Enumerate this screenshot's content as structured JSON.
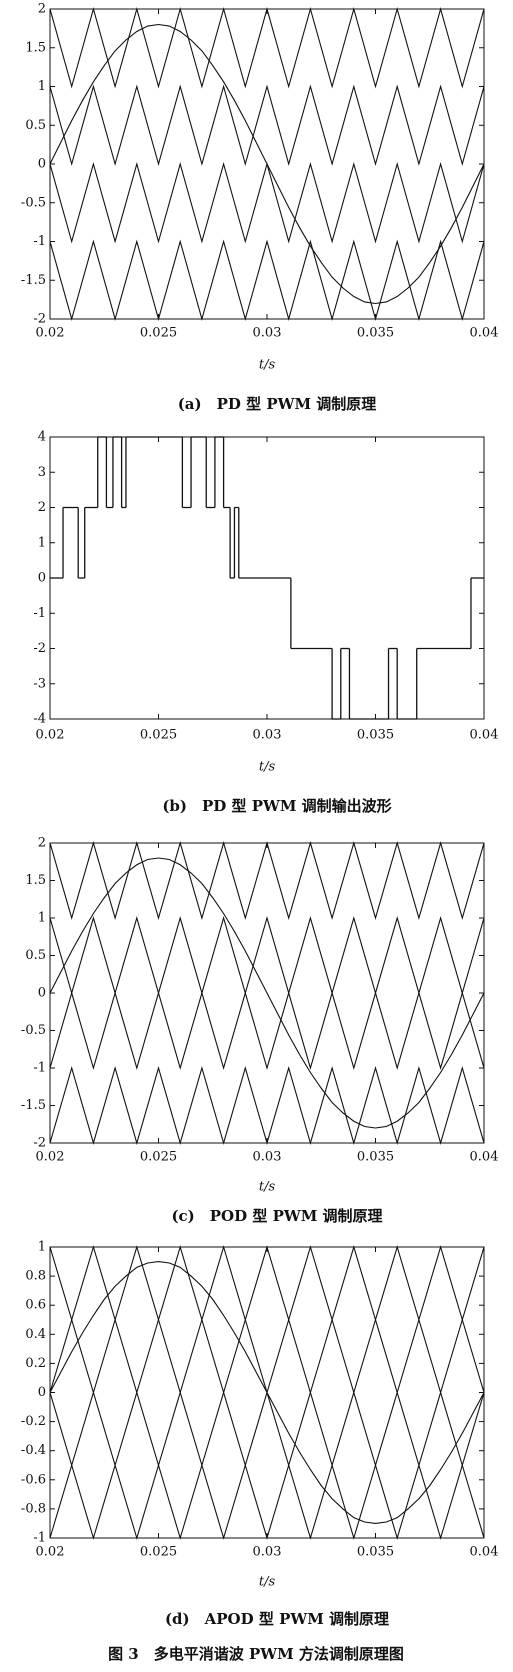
{
  "chart_data": [
    {
      "type": "line",
      "xlabel": "t/s",
      "caption": "(a)　PD 型 PWM 调制原理",
      "xlim": [
        0.02,
        0.04
      ],
      "xticks": [
        0.02,
        0.025,
        0.03,
        0.035,
        0.04
      ],
      "ylim": [
        -2,
        2
      ],
      "yticks": [
        2,
        1.5,
        1,
        0.5,
        0,
        -0.5,
        -1,
        -1.5,
        -2
      ],
      "x": [
        0.02,
        0.021,
        0.022,
        0.023,
        0.024,
        0.025,
        0.026,
        0.027,
        0.028,
        0.029,
        0.03,
        0.031,
        0.032,
        0.033,
        0.034,
        0.035,
        0.036,
        0.037,
        0.038,
        0.039,
        0.04
      ],
      "series": [
        {
          "color": "#111",
          "values": [
            2,
            1,
            2,
            1,
            2,
            1,
            2,
            1,
            2,
            1,
            2,
            1,
            2,
            1,
            2,
            1,
            2,
            1,
            2,
            1,
            2
          ]
        },
        {
          "color": "#111",
          "values": [
            1,
            0,
            1,
            0,
            1,
            0,
            1,
            0,
            1,
            0,
            1,
            0,
            1,
            0,
            1,
            0,
            1,
            0,
            1,
            0,
            1
          ]
        },
        {
          "color": "#111",
          "values": [
            0,
            -1,
            0,
            -1,
            0,
            -1,
            0,
            -1,
            0,
            -1,
            0,
            -1,
            0,
            -1,
            0,
            -1,
            0,
            -1,
            0,
            -1,
            0
          ]
        },
        {
          "color": "#111",
          "values": [
            -1,
            -2,
            -1,
            -2,
            -1,
            -2,
            -1,
            -2,
            -1,
            -2,
            -1,
            -2,
            -1,
            -2,
            -1,
            -2,
            -1,
            -2,
            -1,
            -2,
            -1
          ]
        },
        {
          "color": "#111",
          "x": [
            0.02,
            0.0205,
            0.021,
            0.0215,
            0.022,
            0.0225,
            0.023,
            0.0235,
            0.024,
            0.0245,
            0.025,
            0.0255,
            0.026,
            0.0265,
            0.027,
            0.0275,
            0.028,
            0.0285,
            0.029,
            0.0295,
            0.03,
            0.0305,
            0.031,
            0.0315,
            0.032,
            0.0325,
            0.033,
            0.0335,
            0.034,
            0.0345,
            0.035,
            0.0355,
            0.036,
            0.0365,
            0.037,
            0.0375,
            0.038,
            0.0385,
            0.039,
            0.0395,
            0.04
          ],
          "values": [
            0,
            0.28,
            0.56,
            0.82,
            1.06,
            1.27,
            1.46,
            1.6,
            1.71,
            1.78,
            1.8,
            1.78,
            1.71,
            1.6,
            1.46,
            1.27,
            1.06,
            0.82,
            0.56,
            0.28,
            0,
            -0.28,
            -0.56,
            -0.82,
            -1.06,
            -1.27,
            -1.46,
            -1.6,
            -1.71,
            -1.78,
            -1.8,
            -1.78,
            -1.71,
            -1.6,
            -1.46,
            -1.27,
            -1.06,
            -0.82,
            -0.56,
            -0.28,
            0
          ]
        }
      ]
    },
    {
      "type": "step",
      "xlabel": "t/s",
      "caption": "(b)　PD 型 PWM 调制输出波形",
      "xlim": [
        0.02,
        0.04
      ],
      "xticks": [
        0.02,
        0.025,
        0.03,
        0.035,
        0.04
      ],
      "ylim": [
        -4,
        4
      ],
      "yticks": [
        4,
        3,
        2,
        1,
        0,
        -1,
        -2,
        -3,
        -4
      ],
      "series": [
        {
          "color": "#111",
          "x": [
            0.02,
            0.0206,
            0.0213,
            0.0216,
            0.0222,
            0.0226,
            0.0229,
            0.0233,
            0.0235,
            0.0261,
            0.0265,
            0.0272,
            0.0276,
            0.028,
            0.0283,
            0.0285,
            0.0287,
            0.0311,
            0.033,
            0.0334,
            0.0338,
            0.0356,
            0.036,
            0.0369,
            0.0394
          ],
          "values": [
            0,
            2,
            0,
            2,
            4,
            2,
            4,
            2,
            4,
            2,
            4,
            2,
            4,
            2,
            0,
            2,
            0,
            -2,
            -4,
            -2,
            -4,
            -2,
            -4,
            -2,
            0
          ]
        }
      ]
    },
    {
      "type": "line",
      "xlabel": "t/s",
      "caption": "(c)　POD 型 PWM 调制原理",
      "xlim": [
        0.02,
        0.04
      ],
      "xticks": [
        0.02,
        0.025,
        0.03,
        0.035,
        0.04
      ],
      "ylim": [
        -2,
        2
      ],
      "yticks": [
        2,
        1.5,
        1,
        0.5,
        0,
        -0.5,
        -1,
        -1.5,
        -2
      ],
      "x": [
        0.02,
        0.021,
        0.022,
        0.023,
        0.024,
        0.025,
        0.026,
        0.027,
        0.028,
        0.029,
        0.03,
        0.031,
        0.032,
        0.033,
        0.034,
        0.035,
        0.036,
        0.037,
        0.038,
        0.039,
        0.04
      ],
      "series": [
        {
          "color": "#111",
          "values": [
            2,
            1,
            2,
            1,
            2,
            1,
            2,
            1,
            2,
            1,
            2,
            1,
            2,
            1,
            2,
            1,
            2,
            1,
            2,
            1,
            2
          ]
        },
        {
          "color": "#111",
          "values": [
            1,
            0,
            1,
            0,
            1,
            0,
            1,
            0,
            1,
            0,
            1,
            0,
            1,
            0,
            1,
            0,
            1,
            0,
            1,
            0,
            1
          ]
        },
        {
          "color": "#111",
          "values": [
            -1,
            0,
            -1,
            0,
            -1,
            0,
            -1,
            0,
            -1,
            0,
            -1,
            0,
            -1,
            0,
            -1,
            0,
            -1,
            0,
            -1,
            0,
            -1
          ]
        },
        {
          "color": "#111",
          "values": [
            -2,
            -1,
            -2,
            -1,
            -2,
            -1,
            -2,
            -1,
            -2,
            -1,
            -2,
            -1,
            -2,
            -1,
            -2,
            -1,
            -2,
            -1,
            -2,
            -1,
            -2
          ]
        },
        {
          "color": "#111",
          "x": [
            0.02,
            0.0205,
            0.021,
            0.0215,
            0.022,
            0.0225,
            0.023,
            0.0235,
            0.024,
            0.0245,
            0.025,
            0.0255,
            0.026,
            0.0265,
            0.027,
            0.0275,
            0.028,
            0.0285,
            0.029,
            0.0295,
            0.03,
            0.0305,
            0.031,
            0.0315,
            0.032,
            0.0325,
            0.033,
            0.0335,
            0.034,
            0.0345,
            0.035,
            0.0355,
            0.036,
            0.0365,
            0.037,
            0.0375,
            0.038,
            0.0385,
            0.039,
            0.0395,
            0.04
          ],
          "values": [
            0,
            0.28,
            0.56,
            0.82,
            1.06,
            1.27,
            1.46,
            1.6,
            1.71,
            1.78,
            1.8,
            1.78,
            1.71,
            1.6,
            1.46,
            1.27,
            1.06,
            0.82,
            0.56,
            0.28,
            0,
            -0.28,
            -0.56,
            -0.82,
            -1.06,
            -1.27,
            -1.46,
            -1.6,
            -1.71,
            -1.78,
            -1.8,
            -1.78,
            -1.71,
            -1.6,
            -1.46,
            -1.27,
            -1.06,
            -0.82,
            -0.56,
            -0.28,
            0
          ]
        }
      ]
    },
    {
      "type": "line",
      "xlabel": "t/s",
      "caption": "(d)　APOD 型 PWM 调制原理",
      "xlim": [
        0.02,
        0.04
      ],
      "xticks": [
        0.02,
        0.025,
        0.03,
        0.035,
        0.04
      ],
      "ylim": [
        -1,
        1
      ],
      "yticks": [
        1,
        0.8,
        0.6,
        0.4,
        0.2,
        0,
        -0.2,
        -0.4,
        -0.6,
        -0.8,
        -1
      ],
      "x": [
        0.02,
        0.021,
        0.022,
        0.023,
        0.024,
        0.025,
        0.026,
        0.027,
        0.028,
        0.029,
        0.03,
        0.031,
        0.032,
        0.033,
        0.034,
        0.035,
        0.036,
        0.037,
        0.038,
        0.039,
        0.04
      ],
      "series": [
        {
          "color": "#111",
          "values": [
            1,
            0.5,
            1,
            0.5,
            1,
            0.5,
            1,
            0.5,
            1,
            0.5,
            1,
            0.5,
            1,
            0.5,
            1,
            0.5,
            1,
            0.5,
            1,
            0.5,
            1
          ]
        },
        {
          "color": "#111",
          "values": [
            0,
            0.5,
            0,
            0.5,
            0,
            0.5,
            0,
            0.5,
            0,
            0.5,
            0,
            0.5,
            0,
            0.5,
            0,
            0.5,
            0,
            0.5,
            0,
            0.5,
            0
          ]
        },
        {
          "color": "#111",
          "values": [
            0,
            -0.5,
            0,
            -0.5,
            0,
            -0.5,
            0,
            -0.5,
            0,
            -0.5,
            0,
            -0.5,
            0,
            -0.5,
            0,
            -0.5,
            0,
            -0.5,
            0,
            -0.5,
            0
          ]
        },
        {
          "color": "#111",
          "values": [
            -1,
            -0.5,
            -1,
            -0.5,
            -1,
            -0.5,
            -1,
            -0.5,
            -1,
            -0.5,
            -1,
            -0.5,
            -1,
            -0.5,
            -1,
            -0.5,
            -1,
            -0.5,
            -1,
            -0.5,
            -1
          ]
        },
        {
          "color": "#111",
          "x": [
            0.02,
            0.0205,
            0.021,
            0.0215,
            0.022,
            0.0225,
            0.023,
            0.0235,
            0.024,
            0.0245,
            0.025,
            0.0255,
            0.026,
            0.0265,
            0.027,
            0.0275,
            0.028,
            0.0285,
            0.029,
            0.0295,
            0.03,
            0.0305,
            0.031,
            0.0315,
            0.032,
            0.0325,
            0.033,
            0.0335,
            0.034,
            0.0345,
            0.035,
            0.0355,
            0.036,
            0.0365,
            0.037,
            0.0375,
            0.038,
            0.0385,
            0.039,
            0.0395,
            0.04
          ],
          "values": [
            0,
            0.14,
            0.28,
            0.41,
            0.53,
            0.64,
            0.73,
            0.8,
            0.86,
            0.89,
            0.9,
            0.89,
            0.86,
            0.8,
            0.73,
            0.64,
            0.53,
            0.41,
            0.28,
            0.14,
            0,
            -0.14,
            -0.28,
            -0.41,
            -0.53,
            -0.64,
            -0.73,
            -0.8,
            -0.86,
            -0.89,
            -0.9,
            -0.89,
            -0.86,
            -0.8,
            -0.73,
            -0.64,
            -0.53,
            -0.41,
            -0.28,
            -0.14,
            0
          ]
        }
      ]
    }
  ],
  "caption": "图 3　多电平消谐波 PWM 方法调制原理图"
}
